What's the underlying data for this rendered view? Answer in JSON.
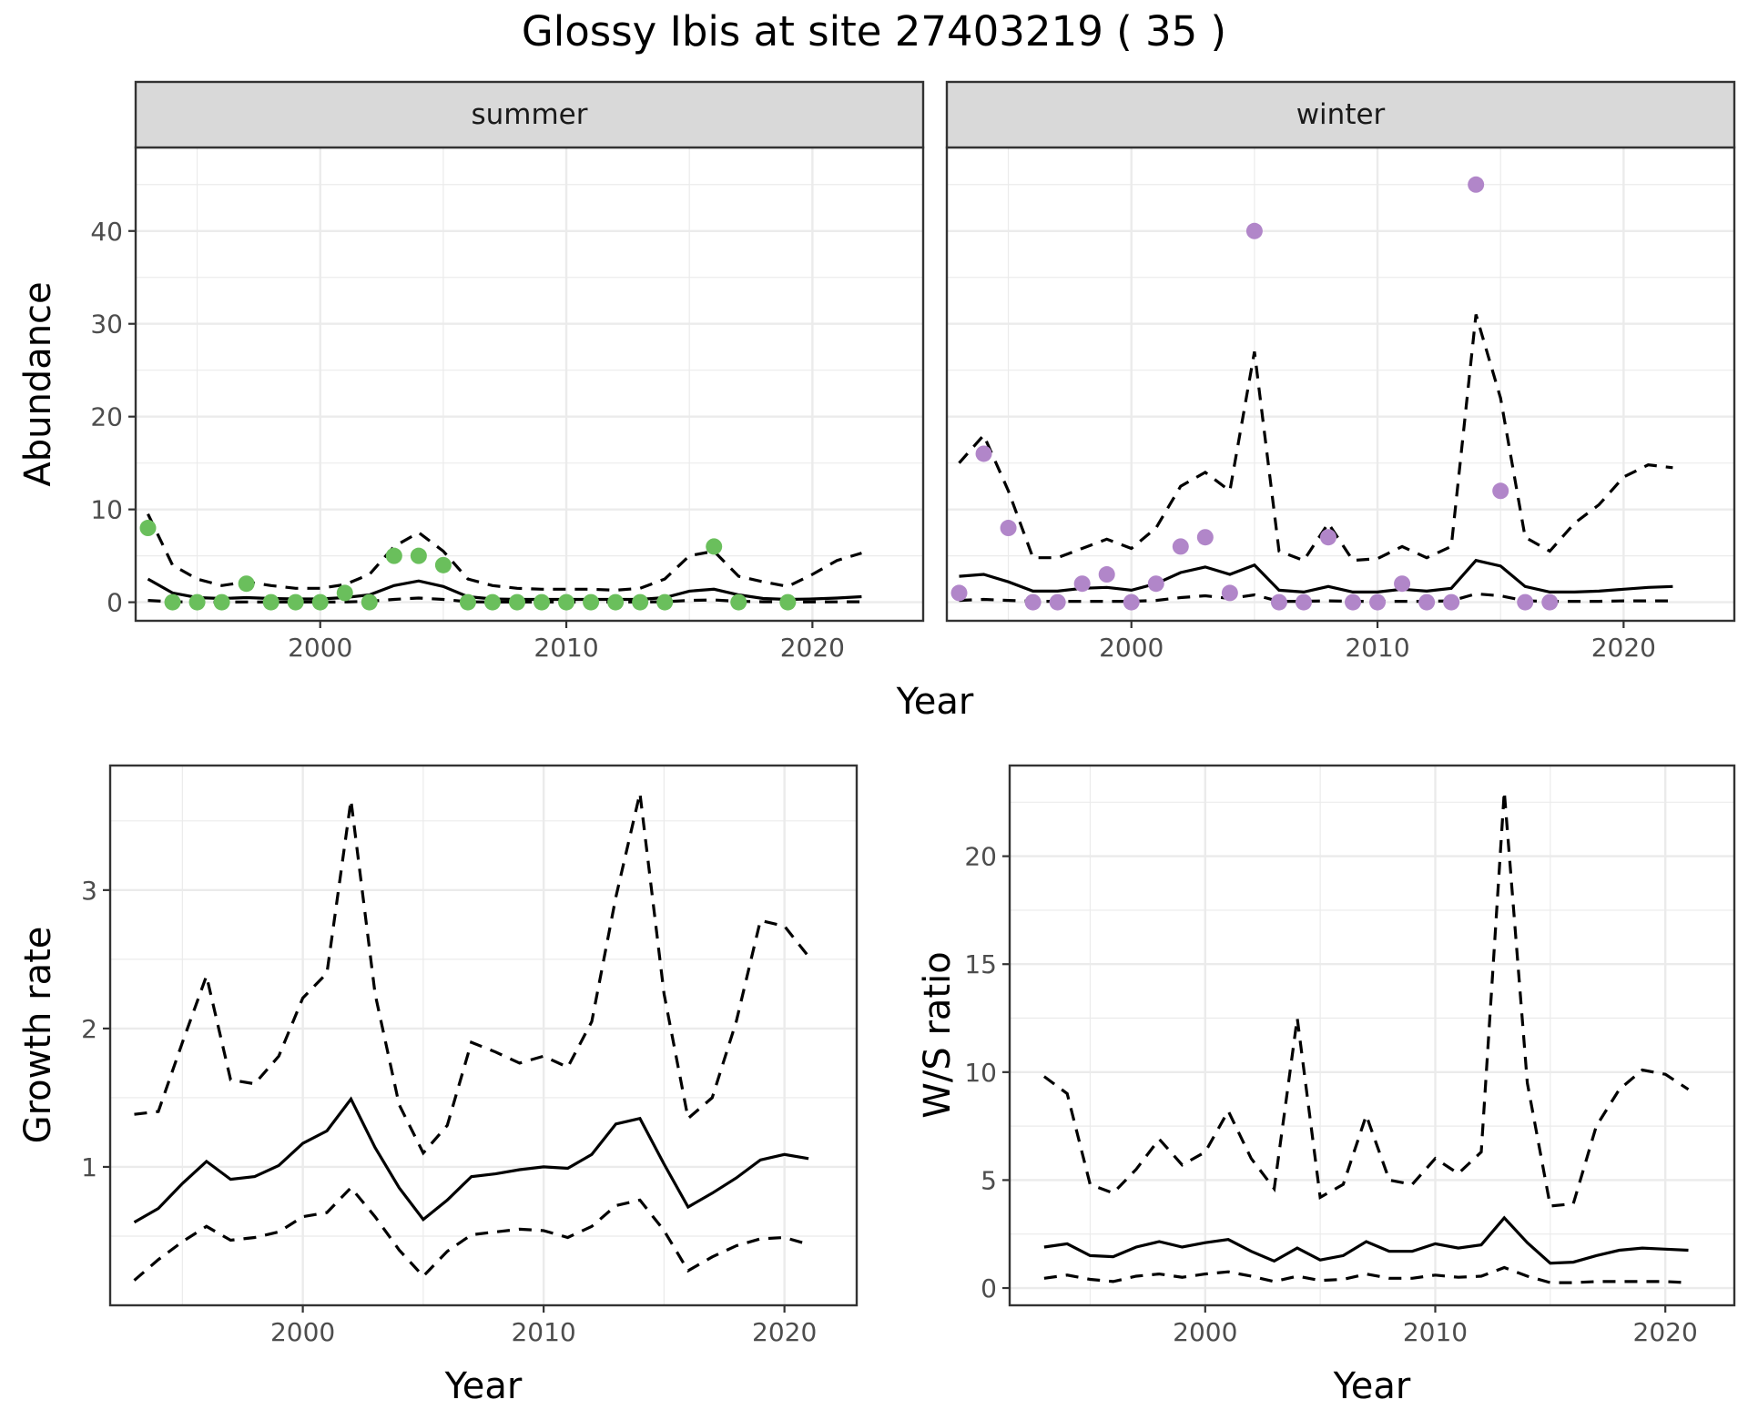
{
  "title": "Glossy Ibis at site 27403219 ( 35 )",
  "colors": {
    "summer_points": "#6abf5c",
    "winter_points": "#b186c9"
  },
  "chart_data": [
    {
      "id": "abundance",
      "type": "line",
      "title": "Glossy Ibis at site 27403219 ( 35 )",
      "xlabel": "Year",
      "ylabel": "Abundance",
      "xlim": [
        1992.5,
        2024.5
      ],
      "ylim": [
        -2,
        49
      ],
      "x_ticks": [
        2000,
        2010,
        2020
      ],
      "y_ticks": [
        0,
        10,
        20,
        30,
        40
      ],
      "grid": true,
      "facets": [
        {
          "label": "summer",
          "point_color": "#6abf5c",
          "points": {
            "x": [
              1993,
              1994,
              1995,
              1996,
              1997,
              1998,
              1999,
              2000,
              2001,
              2002,
              2003,
              2004,
              2005,
              2006,
              2007,
              2008,
              2009,
              2010,
              2011,
              2012,
              2013,
              2014,
              2016,
              2017,
              2019
            ],
            "y": [
              8,
              0,
              0,
              0,
              2,
              0,
              0,
              0,
              1,
              0,
              5,
              5,
              4,
              0,
              0,
              0,
              0,
              0,
              0,
              0,
              0,
              0,
              6,
              0,
              0
            ]
          },
          "line_x": [
            1993,
            1994,
            1995,
            1996,
            1997,
            1998,
            1999,
            2000,
            2001,
            2002,
            2003,
            2004,
            2005,
            2006,
            2007,
            2008,
            2009,
            2010,
            2011,
            2012,
            2013,
            2014,
            2015,
            2016,
            2017,
            2018,
            2019,
            2020,
            2021,
            2022
          ],
          "mean": [
            2.5,
            1.0,
            0.5,
            0.4,
            0.5,
            0.4,
            0.35,
            0.35,
            0.5,
            0.8,
            1.8,
            2.3,
            1.7,
            0.6,
            0.35,
            0.3,
            0.3,
            0.3,
            0.3,
            0.3,
            0.3,
            0.5,
            1.2,
            1.4,
            0.8,
            0.4,
            0.3,
            0.35,
            0.45,
            0.6
          ],
          "upper": [
            9.5,
            4.0,
            2.5,
            1.8,
            2.2,
            1.8,
            1.5,
            1.5,
            1.9,
            3.0,
            6.0,
            7.5,
            5.5,
            2.5,
            1.8,
            1.5,
            1.4,
            1.4,
            1.4,
            1.3,
            1.5,
            2.5,
            5.0,
            5.5,
            2.8,
            2.2,
            1.7,
            3.0,
            4.5,
            5.3
          ],
          "lower": [
            0.2,
            0.05,
            0.03,
            0.02,
            0.03,
            0.02,
            0.02,
            0.02,
            0.03,
            0.1,
            0.3,
            0.45,
            0.3,
            0.05,
            0.02,
            0.02,
            0.02,
            0.02,
            0.02,
            0.02,
            0.02,
            0.05,
            0.2,
            0.25,
            0.1,
            0.05,
            0.02,
            0.03,
            0.04,
            0.05
          ]
        },
        {
          "label": "winter",
          "point_color": "#b186c9",
          "points": {
            "x": [
              1993,
              1994,
              1995,
              1996,
              1997,
              1998,
              1999,
              2000,
              2001,
              2002,
              2003,
              2004,
              2005,
              2006,
              2007,
              2008,
              2009,
              2010,
              2011,
              2012,
              2013,
              2014,
              2015,
              2016,
              2017
            ],
            "y": [
              1,
              16,
              8,
              0,
              0,
              2,
              3,
              0,
              2,
              6,
              7,
              1,
              40,
              0,
              0,
              7,
              0,
              0,
              2,
              0,
              0,
              45,
              12,
              0,
              0
            ]
          },
          "line_x": [
            1993,
            1994,
            1995,
            1996,
            1997,
            1998,
            1999,
            2000,
            2001,
            2002,
            2003,
            2004,
            2005,
            2006,
            2007,
            2008,
            2009,
            2010,
            2011,
            2012,
            2013,
            2014,
            2015,
            2016,
            2017,
            2018,
            2019,
            2020,
            2021,
            2022
          ],
          "mean": [
            2.8,
            3.0,
            2.2,
            1.2,
            1.2,
            1.5,
            1.6,
            1.3,
            2.0,
            3.2,
            3.8,
            3.0,
            4.0,
            1.3,
            1.1,
            1.7,
            1.1,
            1.1,
            1.4,
            1.2,
            1.5,
            4.5,
            3.9,
            1.7,
            1.1,
            1.1,
            1.2,
            1.4,
            1.6,
            1.7
          ],
          "upper": [
            15.0,
            18.0,
            12.0,
            4.8,
            4.8,
            5.8,
            6.8,
            5.8,
            8.0,
            12.5,
            14.0,
            12.0,
            27.0,
            5.5,
            4.5,
            8.5,
            4.5,
            4.7,
            6.0,
            4.8,
            6.0,
            31.0,
            22.0,
            7.0,
            5.5,
            8.5,
            10.5,
            13.5,
            14.8,
            14.5
          ],
          "lower": [
            0.2,
            0.3,
            0.2,
            0.1,
            0.1,
            0.1,
            0.1,
            0.1,
            0.2,
            0.5,
            0.7,
            0.4,
            0.8,
            0.1,
            0.1,
            0.15,
            0.1,
            0.1,
            0.1,
            0.1,
            0.15,
            0.9,
            0.7,
            0.15,
            0.1,
            0.1,
            0.1,
            0.15,
            0.15,
            0.15
          ]
        }
      ]
    },
    {
      "id": "growth",
      "type": "line",
      "xlabel": "Year",
      "ylabel": "Growth rate",
      "xlim": [
        1992.0,
        2023.0
      ],
      "ylim": [
        0.0,
        3.9
      ],
      "x_ticks": [
        2000,
        2010,
        2020
      ],
      "y_ticks": [
        1,
        2,
        3
      ],
      "grid": true,
      "x": [
        1993,
        1994,
        1995,
        1996,
        1997,
        1998,
        1999,
        2000,
        2001,
        2002,
        2003,
        2004,
        2005,
        2006,
        2007,
        2008,
        2009,
        2010,
        2011,
        2012,
        2013,
        2014,
        2015,
        2016,
        2017,
        2018,
        2019,
        2020,
        2021
      ],
      "mean": [
        0.6,
        0.7,
        0.88,
        1.04,
        0.91,
        0.93,
        1.01,
        1.17,
        1.26,
        1.49,
        1.14,
        0.85,
        0.62,
        0.76,
        0.93,
        0.95,
        0.98,
        1.0,
        0.99,
        1.09,
        1.31,
        1.35,
        1.02,
        0.71,
        0.81,
        0.92,
        1.05,
        1.09,
        1.06
      ],
      "upper": [
        1.38,
        1.4,
        1.9,
        2.38,
        1.63,
        1.6,
        1.8,
        2.22,
        2.4,
        3.65,
        2.25,
        1.45,
        1.1,
        1.3,
        1.9,
        1.83,
        1.75,
        1.8,
        1.72,
        2.05,
        2.95,
        3.7,
        2.25,
        1.35,
        1.5,
        2.05,
        2.78,
        2.74,
        2.52
      ],
      "lower": [
        0.18,
        0.33,
        0.46,
        0.57,
        0.47,
        0.49,
        0.53,
        0.64,
        0.67,
        0.85,
        0.64,
        0.4,
        0.21,
        0.39,
        0.51,
        0.53,
        0.55,
        0.54,
        0.49,
        0.57,
        0.72,
        0.76,
        0.54,
        0.25,
        0.35,
        0.43,
        0.48,
        0.49,
        0.44
      ]
    },
    {
      "id": "ws_ratio",
      "type": "line",
      "xlabel": "Year",
      "ylabel": "W/S ratio",
      "xlim": [
        1991.5,
        2023.0
      ],
      "ylim": [
        -0.8,
        24.2
      ],
      "x_ticks": [
        2000,
        2010,
        2020
      ],
      "y_ticks": [
        0,
        5,
        10,
        15,
        20
      ],
      "grid": true,
      "x": [
        1993,
        1994,
        1995,
        1996,
        1997,
        1998,
        1999,
        2000,
        2001,
        2002,
        2003,
        2004,
        2005,
        2006,
        2007,
        2008,
        2009,
        2010,
        2011,
        2012,
        2013,
        2014,
        2015,
        2016,
        2017,
        2018,
        2019,
        2020,
        2021
      ],
      "mean": [
        1.9,
        2.05,
        1.5,
        1.45,
        1.9,
        2.15,
        1.9,
        2.1,
        2.25,
        1.7,
        1.25,
        1.85,
        1.3,
        1.5,
        2.15,
        1.7,
        1.7,
        2.05,
        1.85,
        2.0,
        3.25,
        2.1,
        1.15,
        1.2,
        1.5,
        1.75,
        1.85,
        1.8,
        1.75
      ],
      "upper": [
        9.8,
        9.0,
        4.8,
        4.4,
        5.5,
        6.9,
        5.7,
        6.3,
        8.2,
        6.0,
        4.6,
        12.5,
        4.2,
        4.8,
        8.0,
        5.0,
        4.8,
        6.0,
        5.3,
        6.3,
        23.0,
        9.5,
        3.8,
        3.9,
        7.5,
        9.2,
        10.1,
        9.9,
        9.2
      ],
      "lower": [
        0.45,
        0.6,
        0.4,
        0.3,
        0.55,
        0.65,
        0.5,
        0.65,
        0.75,
        0.55,
        0.3,
        0.55,
        0.35,
        0.4,
        0.65,
        0.45,
        0.45,
        0.6,
        0.5,
        0.55,
        0.95,
        0.55,
        0.25,
        0.25,
        0.3,
        0.3,
        0.3,
        0.3,
        0.25
      ]
    }
  ]
}
